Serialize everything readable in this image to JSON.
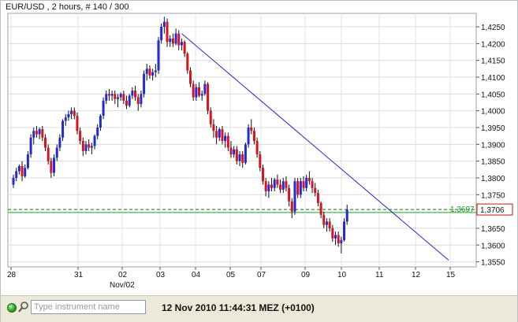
{
  "chart_data": {
    "type": "candlestick",
    "instrument": "EUR/USD",
    "title": "EUR/USD , 2 hours, # 140 / 300",
    "x_tick_labels": [
      "28",
      "31",
      "02",
      "03",
      "04",
      "05",
      "07",
      "09",
      "10",
      "11",
      "12",
      "15"
    ],
    "x_sub_label": "Nov/02",
    "y_tick_labels": [
      "1,4250",
      "1,4200",
      "1,4150",
      "1,4100",
      "1,4050",
      "1,4000",
      "1,3950",
      "1,3900",
      "1,3850",
      "1,3800",
      "1,3750",
      "1,3650",
      "1,3600",
      "1,3550"
    ],
    "ylim": [
      1.3535,
      1.429
    ],
    "grid": true,
    "current_price_label": "1,3706",
    "current_price": 1.3706,
    "reference_line_label": "1,3697",
    "reference_line": 1.3697,
    "trendline": {
      "start": {
        "bar": 58,
        "value": 1.423
      },
      "end": {
        "bar": 150,
        "value": 1.3555
      }
    },
    "colors": {
      "up": "#1f2bd6",
      "down": "#d8121f",
      "wick": "#111111",
      "trendline": "#1c26c4",
      "reference": "#19a11d",
      "current": "#cc1111"
    },
    "candles": [
      [
        1.378,
        1.381,
        1.377,
        1.38
      ],
      [
        1.38,
        1.383,
        1.379,
        1.382
      ],
      [
        1.382,
        1.384,
        1.381,
        1.3835
      ],
      [
        1.3835,
        1.385,
        1.379,
        1.3805
      ],
      [
        1.3805,
        1.384,
        1.38,
        1.383
      ],
      [
        1.383,
        1.388,
        1.3825,
        1.387
      ],
      [
        1.387,
        1.393,
        1.386,
        1.392
      ],
      [
        1.392,
        1.395,
        1.39,
        1.394
      ],
      [
        1.394,
        1.3955,
        1.392,
        1.393
      ],
      [
        1.393,
        1.395,
        1.3915,
        1.3945
      ],
      [
        1.3945,
        1.3955,
        1.391,
        1.392
      ],
      [
        1.392,
        1.393,
        1.388,
        1.389
      ],
      [
        1.389,
        1.39,
        1.384,
        1.385
      ],
      [
        1.385,
        1.386,
        1.38,
        1.3815
      ],
      [
        1.3815,
        1.387,
        1.3805,
        1.386
      ],
      [
        1.386,
        1.39,
        1.385,
        1.389
      ],
      [
        1.389,
        1.393,
        1.388,
        1.392
      ],
      [
        1.392,
        1.3975,
        1.391,
        1.397
      ],
      [
        1.397,
        1.399,
        1.3955,
        1.398
      ],
      [
        1.398,
        1.4,
        1.397,
        1.399
      ],
      [
        1.399,
        1.401,
        1.3975,
        1.4
      ],
      [
        1.4,
        1.401,
        1.3975,
        1.3985
      ],
      [
        1.3985,
        1.3995,
        1.393,
        1.394
      ],
      [
        1.394,
        1.395,
        1.39,
        1.391
      ],
      [
        1.391,
        1.392,
        1.3865,
        1.388
      ],
      [
        1.388,
        1.391,
        1.387,
        1.39
      ],
      [
        1.39,
        1.3915,
        1.388,
        1.389
      ],
      [
        1.389,
        1.3905,
        1.387,
        1.3895
      ],
      [
        1.3895,
        1.393,
        1.3885,
        1.3925
      ],
      [
        1.3925,
        1.396,
        1.3915,
        1.395
      ],
      [
        1.395,
        1.399,
        1.394,
        1.3985
      ],
      [
        1.3985,
        1.404,
        1.3975,
        1.403
      ],
      [
        1.403,
        1.406,
        1.402,
        1.405
      ],
      [
        1.405,
        1.4065,
        1.403,
        1.4045
      ],
      [
        1.4045,
        1.406,
        1.403,
        1.405
      ],
      [
        1.405,
        1.406,
        1.402,
        1.4035
      ],
      [
        1.4035,
        1.405,
        1.401,
        1.404
      ],
      [
        1.404,
        1.4055,
        1.403,
        1.405
      ],
      [
        1.405,
        1.406,
        1.402,
        1.403
      ],
      [
        1.403,
        1.4045,
        1.4005,
        1.4015
      ],
      [
        1.4015,
        1.405,
        1.401,
        1.4045
      ],
      [
        1.4045,
        1.407,
        1.4035,
        1.406
      ],
      [
        1.406,
        1.4075,
        1.403,
        1.404
      ],
      [
        1.404,
        1.405,
        1.4,
        1.402
      ],
      [
        1.402,
        1.406,
        1.401,
        1.405
      ],
      [
        1.405,
        1.412,
        1.404,
        1.411
      ],
      [
        1.411,
        1.414,
        1.409,
        1.4125
      ],
      [
        1.4125,
        1.4135,
        1.4095,
        1.4105
      ],
      [
        1.4105,
        1.4125,
        1.409,
        1.4115
      ],
      [
        1.4115,
        1.414,
        1.41,
        1.412
      ],
      [
        1.412,
        1.422,
        1.411,
        1.421
      ],
      [
        1.421,
        1.426,
        1.42,
        1.425
      ],
      [
        1.425,
        1.428,
        1.423,
        1.4265
      ],
      [
        1.4265,
        1.4275,
        1.419,
        1.4205
      ],
      [
        1.4205,
        1.4225,
        1.419,
        1.4215
      ],
      [
        1.4215,
        1.423,
        1.419,
        1.42
      ],
      [
        1.42,
        1.4245,
        1.4195,
        1.423
      ],
      [
        1.423,
        1.424,
        1.418,
        1.4195
      ],
      [
        1.4195,
        1.4215,
        1.418,
        1.4205
      ],
      [
        1.4205,
        1.421,
        1.416,
        1.417
      ],
      [
        1.417,
        1.4175,
        1.411,
        1.412
      ],
      [
        1.412,
        1.413,
        1.407,
        1.408
      ],
      [
        1.408,
        1.409,
        1.403,
        1.404
      ],
      [
        1.404,
        1.408,
        1.403,
        1.407
      ],
      [
        1.407,
        1.4085,
        1.404,
        1.4045
      ],
      [
        1.4045,
        1.406,
        1.403,
        1.405
      ],
      [
        1.405,
        1.409,
        1.4045,
        1.408
      ],
      [
        1.408,
        1.4085,
        1.399,
        1.4
      ],
      [
        1.4,
        1.401,
        1.395,
        1.396
      ],
      [
        1.396,
        1.3975,
        1.392,
        1.394
      ],
      [
        1.394,
        1.3955,
        1.39,
        1.392
      ],
      [
        1.392,
        1.395,
        1.391,
        1.3945
      ],
      [
        1.3945,
        1.3955,
        1.39,
        1.391
      ],
      [
        1.391,
        1.3935,
        1.389,
        1.3925
      ],
      [
        1.3925,
        1.3935,
        1.388,
        1.389
      ],
      [
        1.389,
        1.391,
        1.386,
        1.387
      ],
      [
        1.387,
        1.3895,
        1.386,
        1.3885
      ],
      [
        1.3885,
        1.3895,
        1.384,
        1.385
      ],
      [
        1.385,
        1.388,
        1.3835,
        1.387
      ],
      [
        1.387,
        1.388,
        1.383,
        1.3845
      ],
      [
        1.3845,
        1.3905,
        1.384,
        1.39
      ],
      [
        1.39,
        1.396,
        1.389,
        1.395
      ],
      [
        1.395,
        1.3975,
        1.393,
        1.394
      ],
      [
        1.394,
        1.395,
        1.39,
        1.391
      ],
      [
        1.391,
        1.392,
        1.386,
        1.387
      ],
      [
        1.387,
        1.388,
        1.382,
        1.383
      ],
      [
        1.383,
        1.384,
        1.378,
        1.379
      ],
      [
        1.379,
        1.38,
        1.3745,
        1.376
      ],
      [
        1.376,
        1.379,
        1.374,
        1.378
      ],
      [
        1.378,
        1.38,
        1.376,
        1.377
      ],
      [
        1.377,
        1.38,
        1.376,
        1.3795
      ],
      [
        1.3795,
        1.381,
        1.377,
        1.378
      ],
      [
        1.378,
        1.3795,
        1.3755,
        1.3765
      ],
      [
        1.3765,
        1.38,
        1.3755,
        1.379
      ],
      [
        1.379,
        1.3805,
        1.376,
        1.377
      ],
      [
        1.377,
        1.378,
        1.3715,
        1.373
      ],
      [
        1.373,
        1.374,
        1.368,
        1.37
      ],
      [
        1.37,
        1.38,
        1.369,
        1.379
      ],
      [
        1.379,
        1.38,
        1.374,
        1.375
      ],
      [
        1.375,
        1.38,
        1.374,
        1.379
      ],
      [
        1.379,
        1.3805,
        1.376,
        1.377
      ],
      [
        1.377,
        1.381,
        1.376,
        1.38
      ],
      [
        1.38,
        1.382,
        1.378,
        1.379
      ],
      [
        1.379,
        1.38,
        1.3755,
        1.377
      ],
      [
        1.377,
        1.3785,
        1.3745,
        1.3755
      ],
      [
        1.3755,
        1.3765,
        1.3715,
        1.3725
      ],
      [
        1.3725,
        1.373,
        1.368,
        1.369
      ],
      [
        1.369,
        1.37,
        1.365,
        1.366
      ],
      [
        1.366,
        1.368,
        1.364,
        1.367
      ],
      [
        1.367,
        1.368,
        1.364,
        1.365
      ],
      [
        1.365,
        1.366,
        1.361,
        1.362
      ],
      [
        1.362,
        1.364,
        1.36,
        1.363
      ],
      [
        1.363,
        1.364,
        1.3595,
        1.3605
      ],
      [
        1.3605,
        1.3625,
        1.3575,
        1.3615
      ],
      [
        1.3615,
        1.368,
        1.361,
        1.367
      ],
      [
        1.367,
        1.372,
        1.366,
        1.3706
      ]
    ]
  },
  "footer": {
    "search_placeholder": "Type instrument name",
    "timestamp": "12 Nov 2010 11:44:31 MEZ (+0100)"
  }
}
